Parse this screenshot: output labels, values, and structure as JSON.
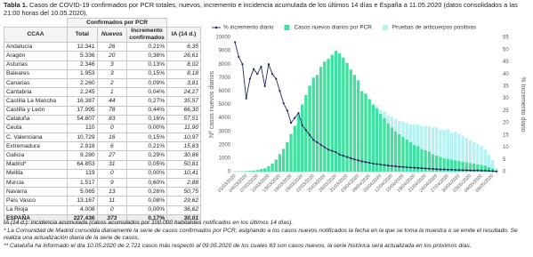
{
  "header": {
    "label": "Tabla 1.",
    "title": "Casos de COVID-19 confirmados por PCR totales, nuevos, incremento e incidencia acumulada de los últimos 14 días e España a 11.05.2020 (datos consolidados a las 21:00 horas del 10.05.2020)."
  },
  "table": {
    "group_header": "Confirmados por PCR",
    "columns": [
      "CCAA",
      "Total",
      "Nuevos",
      "Incremento confirmados",
      "IA (14 d.)"
    ],
    "rows": [
      [
        "Andalucía",
        "12.341",
        "26",
        "0,21%",
        "6,35"
      ],
      [
        "Aragón",
        "5.336",
        "20",
        "0,38%",
        "26,61"
      ],
      [
        "Asturias",
        "2.346",
        "3",
        "0,13%",
        "8,02"
      ],
      [
        "Baleares",
        "1.953",
        "3",
        "0,15%",
        "8,18"
      ],
      [
        "Canarias",
        "2.260",
        "2",
        "0,09%",
        "3,81"
      ],
      [
        "Cantabria",
        "2.245",
        "1",
        "0,04%",
        "24,27"
      ],
      [
        "Castilla La Mancha",
        "16.387",
        "44",
        "0,27%",
        "35,57"
      ],
      [
        "Castilla y León",
        "17.995",
        "78",
        "0,44%",
        "66,30"
      ],
      [
        "Cataluña",
        "54.807",
        "83",
        "0,16%",
        "57,51"
      ],
      [
        "Ceuta",
        "110",
        "0",
        "0,00%",
        "11,90"
      ],
      [
        "C. Valenciana",
        "10.729",
        "16",
        "0,15%",
        "10,97"
      ],
      [
        "Extremadura",
        "2.918",
        "6",
        "0,21%",
        "15,83"
      ],
      [
        "Galicia",
        "9.280",
        "27",
        "0,29%",
        "30,86"
      ],
      [
        "Madrid*",
        "64.853",
        "31",
        "0,05%",
        "50,81"
      ],
      [
        "Melilla",
        "119",
        "0",
        "0,00%",
        "10,41"
      ],
      [
        "Murcia",
        "1.517",
        "9",
        "0,60%",
        "2,88"
      ],
      [
        "Navarra",
        "5.065",
        "13",
        "0,26%",
        "50,75"
      ],
      [
        "País Vasco",
        "13.167",
        "11",
        "0,08%",
        "29,62"
      ],
      [
        "La Rioja",
        "4.008",
        "0",
        "0,00%",
        "36,62"
      ],
      [
        "ESPAÑA",
        "227.436",
        "373",
        "0,17%",
        "30,01"
      ]
    ]
  },
  "chart_data": {
    "type": "bar",
    "stacked": true,
    "legend": "top",
    "grid": false,
    "ylabel": "Nº casos nuevos diarios",
    "y2label": "% Incremento diario",
    "categories": [
      "01/03/2020",
      null,
      null,
      "04/03/2020",
      null,
      null,
      "07/03/2020",
      null,
      null,
      "10/03/2020",
      null,
      null,
      "13/03/2020",
      null,
      null,
      "16/03/2020",
      null,
      null,
      "19/03/2020",
      null,
      null,
      "22/03/2020",
      null,
      null,
      "25/03/2020",
      null,
      null,
      "28/03/2020",
      null,
      null,
      "31/03/2020",
      null,
      null,
      "03/04/2020",
      null,
      null,
      "06/04/2020",
      null,
      null,
      "09/04/2020",
      null,
      null,
      "12/04/2020",
      null,
      null,
      "15/04/2020",
      null,
      null,
      "18/04/2020",
      null,
      null,
      "21/04/2020",
      null,
      null,
      "24/04/2020",
      null,
      null,
      "27/04/2020",
      null,
      null,
      "30/04/2020",
      null,
      null,
      "03/05/2020",
      null,
      null,
      "06/05/2020",
      null,
      null,
      "09/05/2020",
      null
    ],
    "series": [
      {
        "name": "% incremento diario",
        "type": "line",
        "axis": "y2",
        "color": "#1f2a5c",
        "values": [
          53,
          47,
          44,
          30,
          38,
          42,
          40,
          43,
          35,
          44,
          40,
          38,
          33,
          28,
          25,
          20,
          22,
          24,
          19,
          17,
          15,
          13,
          12,
          11,
          10,
          9,
          8.5,
          8,
          7,
          6.5,
          6,
          5.5,
          5,
          4.6,
          4.2,
          3.9,
          3.6,
          3.3,
          3.1,
          2.9,
          2.7,
          2.5,
          2.3,
          2.2,
          2,
          1.9,
          1.8,
          1.7,
          1.6,
          1.5,
          1.4,
          1.3,
          1.2,
          1.1,
          1,
          0.9,
          0.9,
          0.8,
          0.8,
          0.7,
          0.7,
          0.6,
          0.6,
          0.5,
          0.5,
          0.5,
          0.4,
          0.4,
          0.3,
          0.2,
          0.1
        ]
      },
      {
        "name": "Casos nuevos diarios por PCR",
        "color": "#3fe0a0",
        "values": [
          10,
          20,
          30,
          40,
          60,
          80,
          120,
          180,
          250,
          400,
          600,
          900,
          1300,
          1700,
          2200,
          2800,
          3400,
          4200,
          5000,
          5700,
          6400,
          7000,
          7200,
          7800,
          8200,
          8400,
          8700,
          9000,
          8800,
          8500,
          8100,
          7600,
          7200,
          6800,
          6000,
          5800,
          5400,
          5000,
          4700,
          4300,
          4000,
          3600,
          3300,
          3000,
          2800,
          2600,
          2400,
          2200,
          2000,
          1900,
          1700,
          1600,
          1500,
          1300,
          1200,
          1100,
          1000,
          950,
          900,
          850,
          800,
          750,
          700,
          650,
          600,
          550,
          500,
          450,
          350,
          250,
          80
        ]
      },
      {
        "name": "Pruebas de anticuerpos positivas",
        "color": "#b4f3f1",
        "values": [
          0,
          0,
          0,
          0,
          0,
          0,
          0,
          0,
          0,
          0,
          0,
          0,
          0,
          0,
          0,
          0,
          0,
          0,
          0,
          0,
          0,
          0,
          0,
          0,
          0,
          0,
          0,
          0,
          0,
          0,
          0,
          0,
          0,
          0,
          0,
          0,
          0,
          0,
          200,
          300,
          500,
          600,
          800,
          900,
          1000,
          1100,
          1200,
          1300,
          1500,
          1600,
          1700,
          1800,
          1900,
          2000,
          2100,
          2000,
          2100,
          2200,
          2000,
          2100,
          2000,
          1900,
          1800,
          1700,
          1600,
          1500,
          1400,
          1200,
          900,
          600,
          200
        ]
      }
    ],
    "ylim": [
      0,
      10000
    ],
    "yticks": [
      0,
      1000,
      2000,
      3000,
      4000,
      5000,
      6000,
      7000,
      8000,
      9000,
      10000
    ],
    "y2lim": [
      0,
      55
    ],
    "y2ticks": [
      0,
      5,
      10,
      15,
      20,
      25,
      30,
      35,
      40,
      45,
      50,
      55
    ]
  },
  "footnotes": [
    "IA (14 d.): Incidencia acumulada (casos acumulados por 100.000 habitantes notificados en los últimos 14 días).",
    "* La Comunidad de Madrid consolida diariamente la serie de casos confirmados por PCR, asignando a los casos nuevos notificados la fecha en la que se toma la muestra o se emite el resultado. Se realiza una actualización diaria de la serie de casos.",
    "** Cataluña ha informado el día 10.05.2020 de 2.721 casos más respecto al 09.05.2020 de los cuales 83 son casos nuevos, la serie histórica será actualizada en los próximos días."
  ]
}
